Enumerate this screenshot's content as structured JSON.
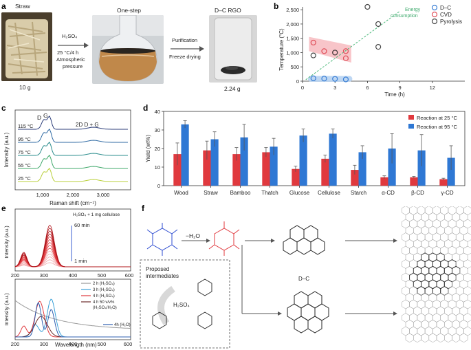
{
  "panel_a": {
    "letter": "a",
    "straw_label": "Straw",
    "onestep_label": "One-step",
    "product_label": "D–C RGO",
    "reagent": "H₂SO₄",
    "conditions_1": "25 °C/4 h",
    "conditions_2": "Atmospheric",
    "conditions_3": "pressure",
    "purification": "Purification",
    "freeze": "Freeze drying",
    "mass_in": "10 g",
    "mass_out": "2.24 g",
    "colors": {
      "straw": "#cfc3a2",
      "solution": "#b7864a",
      "dark": "#2a2a2a"
    }
  },
  "panel_b": {
    "letter": "b",
    "energy_label_1": "Energy",
    "energy_label_2": "consumption",
    "legend": [
      "D–C",
      "CVD",
      "Pyrolysis"
    ],
    "ylabel": "Temperature (°C)",
    "xlabel": "Time (h)",
    "yticks": [
      "0",
      "500",
      "1,000",
      "1,500",
      "2,000",
      "2,500"
    ],
    "xticks": [
      "0",
      "3",
      "6",
      "9",
      "12"
    ],
    "colors": {
      "dc": "#3a7fd5",
      "cvd": "#e0505a",
      "pyro": "#444444",
      "line": "#4bb87a"
    }
  },
  "panel_c": {
    "letter": "c",
    "peak_d": "D",
    "peak_g": "G",
    "peak_2d": "2D D + G",
    "ylabel": "Intensity (a.u.)",
    "xlabel": "Raman shift (cm⁻¹)",
    "xticks": [
      "1,000",
      "2,000",
      "3,000"
    ],
    "spectra": [
      {
        "temp": "115 °C",
        "color": "#2c3e7a"
      },
      {
        "temp": "95 °C",
        "color": "#2f6aa3"
      },
      {
        "temp": "75 °C",
        "color": "#2a8c8c"
      },
      {
        "temp": "55 °C",
        "color": "#3fa86a"
      },
      {
        "temp": "25 °C",
        "color": "#b9cf3a"
      }
    ]
  },
  "panel_d": {
    "letter": "d",
    "ylabel": "Yield (wt%)",
    "legend": [
      "Reaction at 25 °C",
      "Reaction at 95 °C"
    ],
    "yticks": [
      "0",
      "10",
      "20",
      "30",
      "40"
    ],
    "colors": {
      "c25": "#e0393e",
      "c95": "#2f78d4"
    }
  },
  "chart_data": [
    {
      "type": "scatter",
      "xlabel": "Time (h)",
      "ylabel": "Temperature (°C)",
      "xlim": [
        0,
        15
      ],
      "ylim": [
        0,
        2600
      ],
      "series": [
        {
          "name": "D–C",
          "x": [
            1,
            2,
            3,
            4
          ],
          "y": [
            100,
            90,
            80,
            60
          ]
        },
        {
          "name": "CVD",
          "x": [
            1,
            2,
            3,
            4,
            4
          ],
          "y": [
            1350,
            1050,
            1000,
            1050,
            800
          ]
        },
        {
          "name": "Pyrolysis",
          "x": [
            1,
            3,
            6,
            7,
            7
          ],
          "y": [
            900,
            1000,
            2600,
            2000,
            1200
          ]
        }
      ]
    },
    {
      "type": "bar",
      "ylabel": "Yield (wt%)",
      "ylim": [
        0,
        40
      ],
      "categories": [
        "Wood",
        "Straw",
        "Bamboo",
        "Thatch",
        "Glucose",
        "Cellulose",
        "Starch",
        "α-CD",
        "β-CD",
        "γ-CD"
      ],
      "series": [
        {
          "name": "Reaction at 25 °C",
          "values": [
            17,
            19,
            17,
            18,
            9,
            14.5,
            8.5,
            4.5,
            4.5,
            3.5
          ],
          "errors": [
            6,
            5,
            3.5,
            2.5,
            1.5,
            2,
            2.5,
            0.8,
            0.5,
            0.5
          ]
        },
        {
          "name": "Reaction at 95 °C",
          "values": [
            33,
            25,
            26,
            21,
            27,
            28,
            18,
            20,
            19,
            15
          ],
          "errors": [
            2,
            4,
            7,
            4.5,
            3.5,
            2.5,
            3.5,
            8,
            8.5,
            6.5
          ]
        }
      ]
    }
  ],
  "panel_e": {
    "letter": "e",
    "top_label": "H₂SO₄ + 1 mg cellulose",
    "t60": "60 min",
    "t1": "1 min",
    "ylabel": "Intensity (a.u.)",
    "xlabel": "Wavelength (nm)",
    "xticks_top": [
      "200",
      "300",
      "400",
      "500",
      "600"
    ],
    "xticks_bot": [
      "200",
      "300",
      "400",
      "500",
      "600"
    ],
    "legend": [
      {
        "text": "2 h (H₂SO₄)",
        "color": "#9a9a9a"
      },
      {
        "text": "3 h (H₂SO₄)",
        "color": "#3aa0d8"
      },
      {
        "text": "4 h (H₂SO₄)",
        "color": "#e0393e"
      },
      {
        "text": "4 h  50 v/v%",
        "color": "#6a2a2a"
      },
      {
        "text": "(H₂SO₄/H₂O)",
        "color": "none"
      }
    ],
    "h2o_label": "4h (H₂O)"
  },
  "panel_f": {
    "letter": "f",
    "minus_h2o": "−H₂O",
    "proposed_1": "Proposed",
    "proposed_2": "intermediates",
    "h2so4": "H₂SO₄",
    "dc_label": "D–C"
  }
}
